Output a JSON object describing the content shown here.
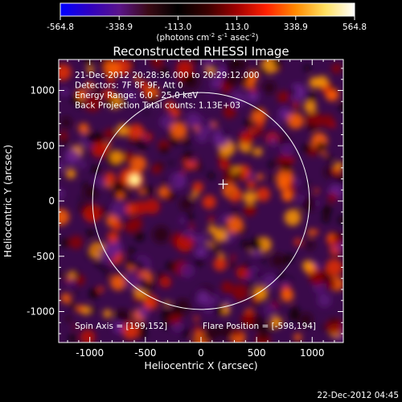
{
  "colorbar": {
    "ticks": [
      "-564.8",
      "-338.9",
      "-113.0",
      "113.0",
      "338.9",
      "564.8"
    ],
    "unit_base": "(photons cm",
    "unit_exp1": "-2",
    "unit_mid1": " s",
    "unit_exp2": "-1",
    "unit_mid2": " asec",
    "unit_exp3": "-2",
    "unit_end": ")",
    "colors": [
      "#0000ff",
      "#3000c0",
      "#5a148a",
      "#3a0a14",
      "#000000",
      "#3a0000",
      "#a00000",
      "#ff2000",
      "#ff8a00",
      "#ffe060",
      "#ffffff"
    ]
  },
  "plot": {
    "title": "Reconstructed RHESSI Image",
    "xlabel": "Heliocentric X (arcsec)",
    "ylabel": "Heliocentric Y (arcsec)",
    "x_ticks": [
      "-1000",
      "-500",
      "0",
      "500",
      "1000"
    ],
    "y_ticks": [
      "1000",
      "500",
      "0",
      "-500",
      "-1000"
    ],
    "xlim": [
      -1280,
      1280
    ],
    "ylim": [
      -1280,
      1280
    ],
    "info_lines": [
      "21-Dec-2012 20:28:36.000 to 20:29:12.000",
      "Detectors: 7F 8F 9F, Att 0",
      "Energy Range: 6.0 - 25.0 keV",
      "Back Projection    Total counts: 1.13E+03"
    ],
    "spin_axis": "Spin Axis = [199,152]",
    "flare_position": "Flare Position = [-598,194]",
    "disk_center": [
      0,
      0
    ],
    "disk_radius": 975,
    "crosshair": [
      199,
      152
    ]
  },
  "footer": {
    "timestamp": "22-Dec-2012 04:45"
  }
}
